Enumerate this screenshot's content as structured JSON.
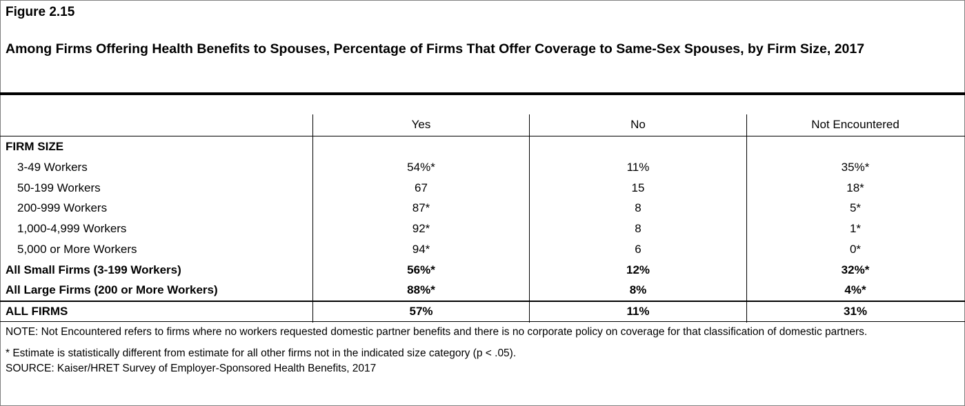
{
  "figure_label": "Figure 2.15",
  "chart_data": {
    "type": "table",
    "title": "Among Firms Offering Health Benefits to Spouses, Percentage of Firms That Offer Coverage to Same-Sex Spouses, by Firm Size, 2017",
    "columns": [
      "Yes",
      "No",
      "Not Encountered"
    ],
    "section_label": "FIRM SIZE",
    "rows": [
      {
        "label": "3-49 Workers",
        "values": [
          "54%*",
          "11%",
          "35%*"
        ],
        "bold": false,
        "indent": true
      },
      {
        "label": "50-199 Workers",
        "values": [
          "67",
          "15",
          "18*"
        ],
        "bold": false,
        "indent": true
      },
      {
        "label": "200-999 Workers",
        "values": [
          "87*",
          "8",
          "5*"
        ],
        "bold": false,
        "indent": true
      },
      {
        "label": "1,000-4,999 Workers",
        "values": [
          "92*",
          "8",
          "1*"
        ],
        "bold": false,
        "indent": true
      },
      {
        "label": "5,000 or More Workers",
        "values": [
          "94*",
          "6",
          "0*"
        ],
        "bold": false,
        "indent": true
      },
      {
        "label": "All Small Firms (3-199 Workers)",
        "values": [
          "56%*",
          "12%",
          "32%*"
        ],
        "bold": true,
        "indent": false
      },
      {
        "label": "All Large Firms (200 or More Workers)",
        "values": [
          "88%*",
          "8%",
          "4%*"
        ],
        "bold": true,
        "indent": false
      }
    ],
    "total_row": {
      "label": "ALL FIRMS",
      "values": [
        "57%",
        "11%",
        "31%"
      ]
    }
  },
  "notes": {
    "note": "NOTE: Not Encountered refers to firms where no workers requested domestic partner benefits and there is no corporate policy on coverage for that classification of domestic partners.",
    "asterisk": "* Estimate is statistically different from estimate for all other firms not in the indicated size category (p < .05).",
    "source": "SOURCE: Kaiser/HRET Survey of Employer-Sponsored Health Benefits, 2017"
  }
}
